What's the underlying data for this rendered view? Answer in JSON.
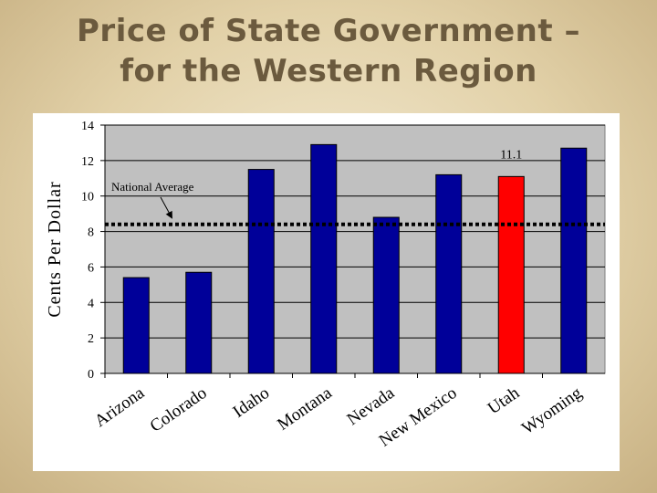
{
  "slide": {
    "title_line1": "Price of State Government –",
    "title_line2": "for the Western Region"
  },
  "chart_data": {
    "type": "bar",
    "title": "Price of State Government – for the Western Region",
    "ylabel": "Cents Per Dollar",
    "xlabel": "",
    "ylim": [
      0,
      14
    ],
    "yticks": [
      0,
      2,
      4,
      6,
      8,
      10,
      12,
      14
    ],
    "grid": true,
    "categories": [
      "Arizona",
      "Colorado",
      "Idaho",
      "Montana",
      "Nevada",
      "New Mexico",
      "Utah",
      "Wyoming"
    ],
    "values": [
      5.4,
      5.7,
      11.5,
      12.9,
      8.8,
      11.2,
      11.1,
      12.7
    ],
    "highlight_index": 6,
    "highlight_label": "11.1",
    "bar_color": "#000099",
    "highlight_color": "#ff0000",
    "plot_background": "#c0c0c0",
    "reference_line": {
      "label": "National Average",
      "value": 8.4
    }
  }
}
